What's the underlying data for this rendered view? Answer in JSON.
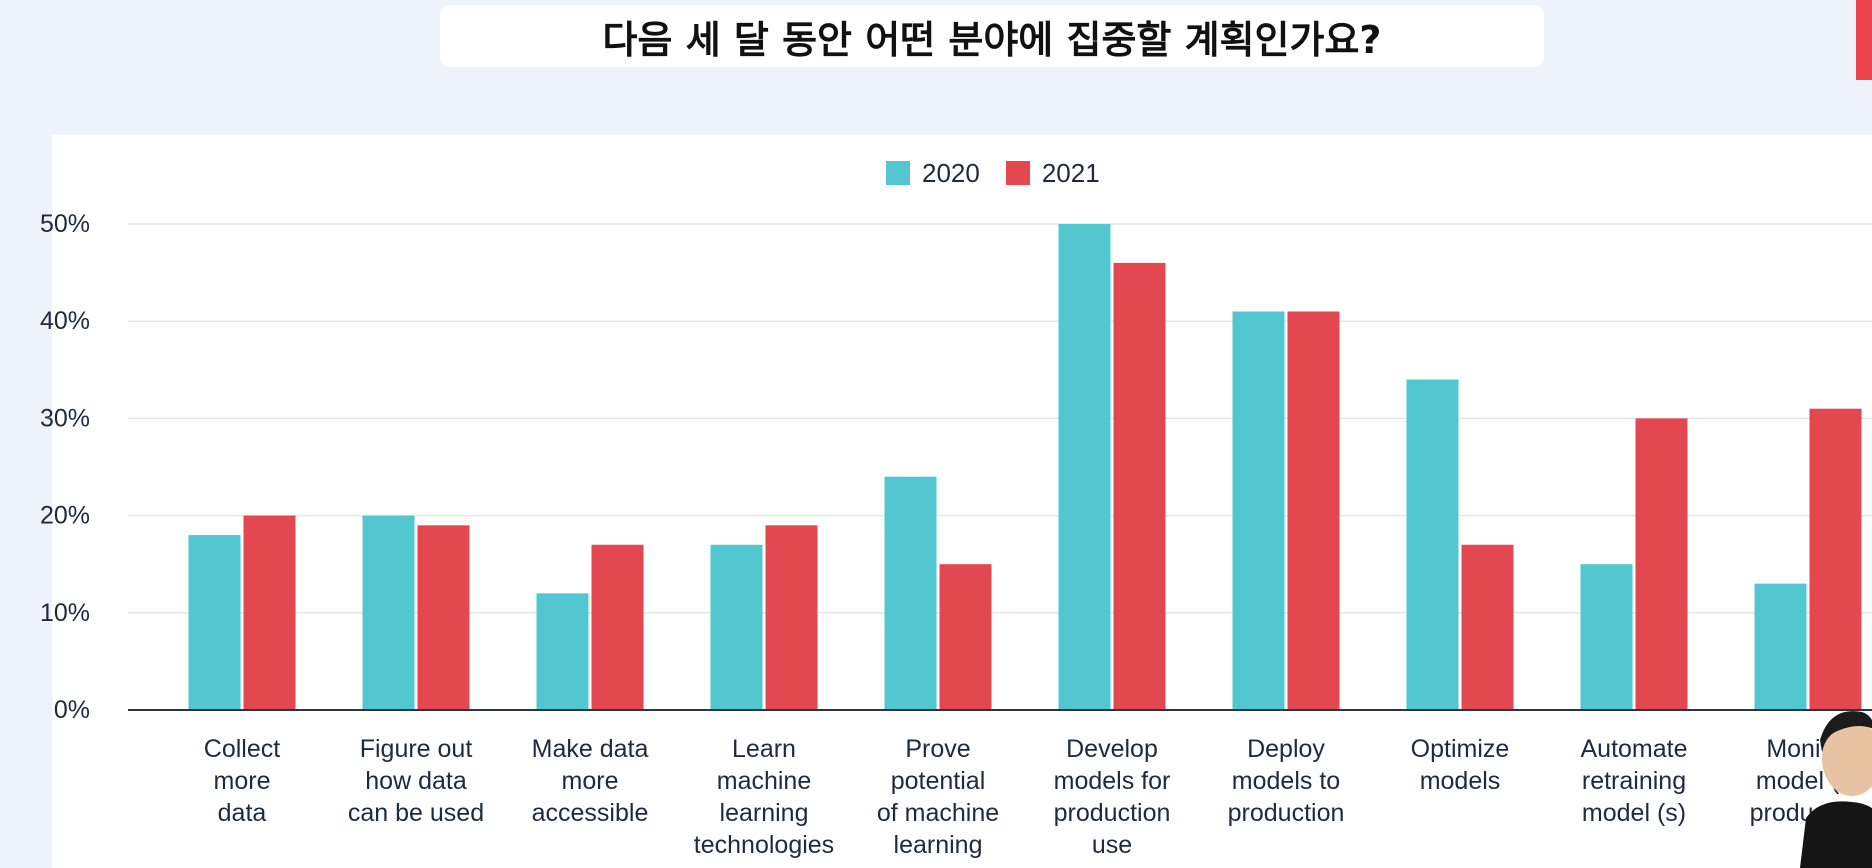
{
  "page": {
    "title": "다음 세 달 동안 어떤 분야에 집중할 계획인가요?",
    "accent_color": "#e8434c",
    "background_color": "#eef3fb"
  },
  "chart_data": {
    "type": "bar",
    "title": "",
    "xlabel": "",
    "ylabel": "",
    "ylim": [
      0,
      50
    ],
    "yticks": [
      "0%",
      "10%",
      "20%",
      "30%",
      "40%",
      "50%"
    ],
    "grid": true,
    "legend_position": "top-center",
    "categories": [
      [
        "Collect",
        "more",
        "data"
      ],
      [
        "Figure out",
        "how data",
        "can be used"
      ],
      [
        "Make data",
        "more",
        "accessible"
      ],
      [
        "Learn",
        "machine",
        "learning",
        "technologies"
      ],
      [
        "Prove",
        "potential",
        "of machine",
        "learning"
      ],
      [
        "Develop",
        "models for",
        "production",
        "use"
      ],
      [
        "Deploy",
        "models to",
        "production"
      ],
      [
        "Optimize",
        "models"
      ],
      [
        "Automate",
        "retraining",
        "model (s)"
      ],
      [
        "Monitor",
        "model (s)",
        "production"
      ]
    ],
    "series": [
      {
        "name": "2020",
        "color": "#52c7d0",
        "values": [
          18,
          20,
          12,
          17,
          24,
          50,
          41,
          34,
          15,
          13
        ]
      },
      {
        "name": "2021",
        "color": "#e3474f",
        "values": [
          20,
          19,
          17,
          19,
          15,
          46,
          41,
          17,
          30,
          31
        ]
      }
    ]
  }
}
